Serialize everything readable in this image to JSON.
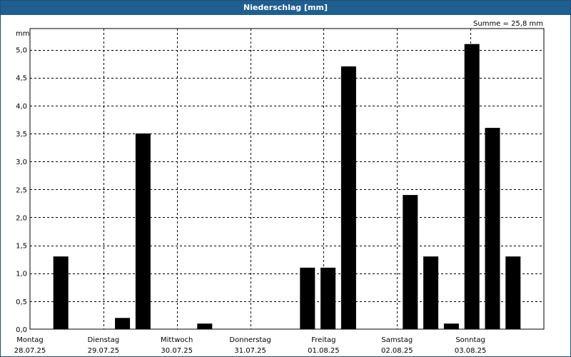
{
  "window": {
    "title": "Niederschlag [mm]"
  },
  "chart_data": {
    "type": "bar",
    "title": "Niederschlag [mm]",
    "ylabel": "mm",
    "annotation": "Summe = 25,8 mm",
    "ylim": [
      0,
      5.4
    ],
    "yticks": [
      "0,0",
      "0,5",
      "1,0",
      "1,5",
      "2,0",
      "2,5",
      "3,0",
      "3,5",
      "4,0",
      "4,5",
      "5,0"
    ],
    "grid": true,
    "days": [
      {
        "name": "Montag",
        "date": "28.07.25"
      },
      {
        "name": "Dienstag",
        "date": "29.07.25"
      },
      {
        "name": "Mittwoch",
        "date": "30.07.25"
      },
      {
        "name": "Donnerstag",
        "date": "31.07.25"
      },
      {
        "name": "Freitag",
        "date": "01.08.25"
      },
      {
        "name": "Samstag",
        "date": "02.08.25"
      },
      {
        "name": "Sonntag",
        "date": "03.08.25"
      }
    ],
    "values": [
      0,
      1.3,
      0,
      0,
      0.2,
      3.5,
      0,
      0,
      0.1,
      0,
      0,
      0,
      0,
      1.1,
      1.1,
      4.7,
      0,
      0,
      2.4,
      1.3,
      0.1,
      5.1,
      3.6,
      1.3,
      0
    ],
    "colors": {
      "bars": "#000000",
      "grid": "#000000",
      "titlebar": "#1f5f8f",
      "title_text": "#ffffff"
    }
  }
}
